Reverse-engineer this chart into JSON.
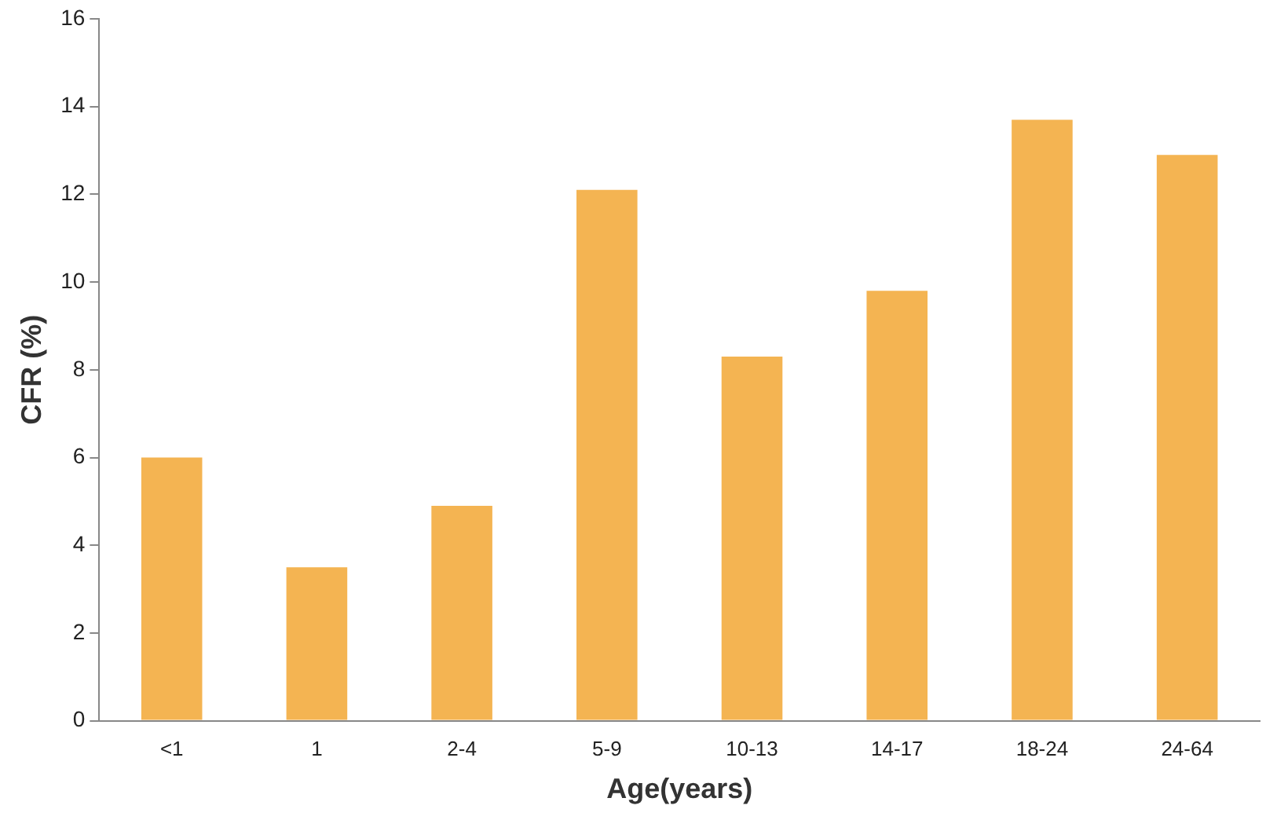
{
  "chart_data": {
    "type": "bar",
    "xlabel": "Age(years)",
    "ylabel": "CFR (%)",
    "categories": [
      "<1",
      "1",
      "2-4",
      "5-9",
      "10-13",
      "14-17",
      "18-24",
      "24-64"
    ],
    "values": [
      6.0,
      3.5,
      4.9,
      12.1,
      8.3,
      9.8,
      13.7,
      12.9
    ],
    "color": "#f4b452",
    "ylim": [
      0,
      16
    ],
    "yticks": [
      0,
      2,
      4,
      6,
      8,
      10,
      12,
      14,
      16
    ],
    "grid": false,
    "legend": false
  }
}
